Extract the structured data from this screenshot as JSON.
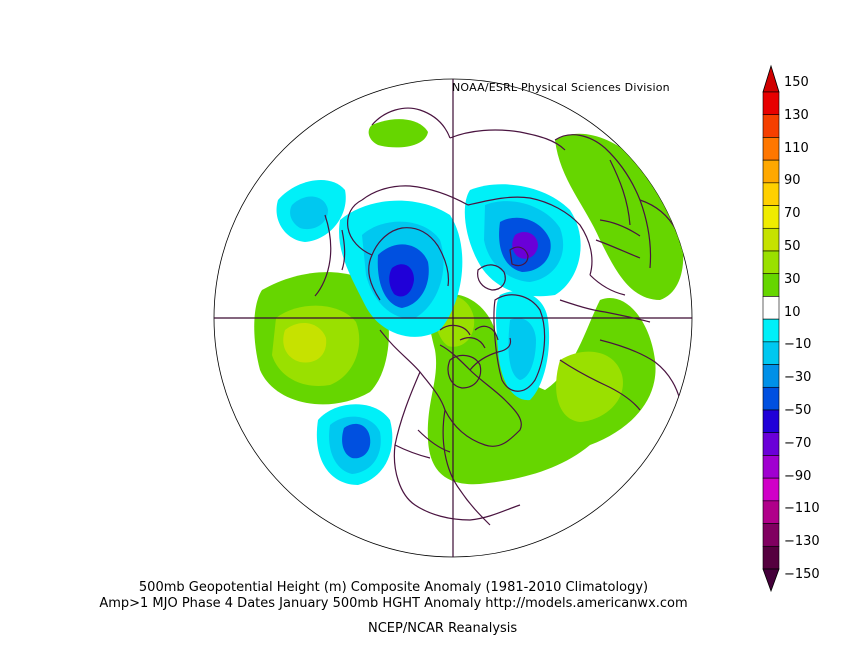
{
  "credit": "NOAA/ESRL Physical Sciences Division",
  "captions": {
    "line1": "500mb Geopotential Height (m) Composite Anomaly (1981-2010 Climatology)",
    "line2": "Amp>1 MJO Phase 4 Dates January 500mb HGHT Anomaly http://models.americanwx.com",
    "line3": "NCEP/NCAR Reanalysis"
  },
  "colorbar": {
    "labels": [
      "150",
      "130",
      "110",
      "90",
      "70",
      "50",
      "30",
      "10",
      "−10",
      "−30",
      "−50",
      "−70",
      "−90",
      "−110",
      "−130",
      "−150"
    ],
    "colors": [
      "#e80000",
      "#f53f00",
      "#ff7700",
      "#ffa800",
      "#ffd000",
      "#f0ec00",
      "#c6e200",
      "#9ae000",
      "#66d600",
      "#ffffff",
      "#00f0f8",
      "#00c8f0",
      "#0090e8",
      "#0050e0",
      "#2000d8",
      "#6a00d8",
      "#a000d0",
      "#d000c8",
      "#b0008a",
      "#800060",
      "#55003f"
    ],
    "top_arrow_color": "#d00000",
    "bottom_arrow_color": "#44003a"
  },
  "map": {
    "projection": "polar stereographic, north pole",
    "coastline_color": "#4a1440",
    "gridline_color": "#3b0a32"
  }
}
